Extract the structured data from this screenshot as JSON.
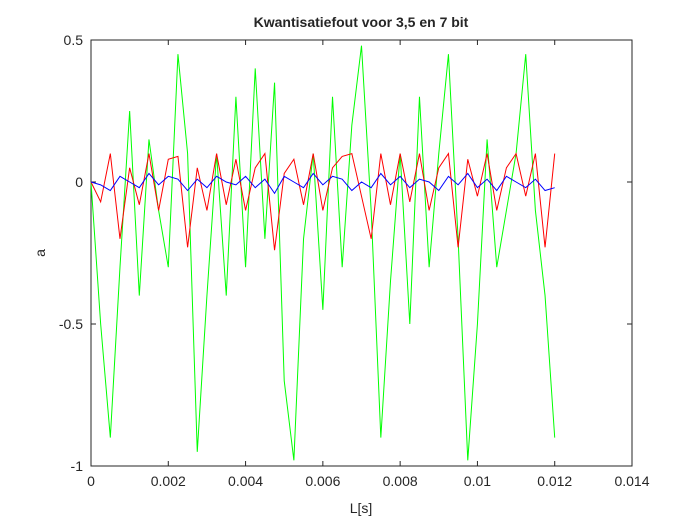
{
  "chart_data": {
    "type": "line",
    "title": "Kwantisatiefout voor 3,5 en 7 bit",
    "x_label": "L[s]",
    "y_label": "a",
    "x": [
      0,
      0.00025,
      0.0005,
      0.00075,
      0.001,
      0.00125,
      0.0015,
      0.00175,
      0.002,
      0.00225,
      0.0025,
      0.00275,
      0.003,
      0.00325,
      0.0035,
      0.00375,
      0.004,
      0.00425,
      0.0045,
      0.00475,
      0.005,
      0.00525,
      0.0055,
      0.00575,
      0.006,
      0.00625,
      0.0065,
      0.00675,
      0.007,
      0.00725,
      0.0075,
      0.00775,
      0.008,
      0.00825,
      0.0085,
      0.00875,
      0.009,
      0.00925,
      0.0095,
      0.00975,
      0.01,
      0.01025,
      0.0105,
      0.01075,
      0.011,
      0.01125,
      0.0115,
      0.01175,
      0.012
    ],
    "series": [
      {
        "color": "#00ff00",
        "values": [
          0,
          -0.5,
          -0.9,
          -0.3,
          0.25,
          -0.4,
          0.15,
          -0.1,
          -0.3,
          0.45,
          0.1,
          -0.95,
          -0.4,
          0.1,
          -0.4,
          0.3,
          -0.3,
          0.4,
          -0.2,
          0.35,
          -0.7,
          -0.98,
          -0.2,
          0.1,
          -0.45,
          0.3,
          -0.3,
          0.2,
          0.48,
          -0.1,
          -0.9,
          -0.35,
          0.1,
          -0.5,
          0.3,
          -0.3,
          0.1,
          0.45,
          -0.2,
          -0.98,
          -0.5,
          0.15,
          -0.3,
          -0.1,
          0.1,
          0.45,
          -0.1,
          -0.4,
          -0.9
        ]
      },
      {
        "color": "#ff0000",
        "values": [
          0,
          -0.07,
          0.1,
          -0.2,
          0.05,
          -0.08,
          0.1,
          -0.1,
          0.08,
          0.09,
          -0.23,
          0.05,
          -0.1,
          0.1,
          -0.08,
          0.08,
          -0.1,
          0.05,
          0.1,
          -0.24,
          0.03,
          0.08,
          -0.08,
          0.1,
          -0.1,
          0.05,
          0.09,
          0.1,
          -0.05,
          -0.2,
          0.1,
          -0.08,
          0.1,
          -0.07,
          0.1,
          -0.1,
          0.05,
          0.1,
          -0.23,
          0.08,
          -0.05,
          0.1,
          -0.1,
          0.05,
          0.1,
          -0.05,
          0.1,
          -0.23,
          0.1
        ]
      },
      {
        "color": "#0000ff",
        "values": [
          0,
          -0.01,
          -0.03,
          0.02,
          0,
          -0.02,
          0.03,
          -0.01,
          0.02,
          0.01,
          -0.03,
          0.01,
          -0.02,
          0.02,
          0,
          -0.01,
          0.02,
          -0.02,
          0.01,
          -0.04,
          0.02,
          0,
          -0.02,
          0.03,
          -0.01,
          0.02,
          0.01,
          -0.03,
          0,
          -0.02,
          0.03,
          -0.01,
          0.02,
          -0.02,
          0.01,
          0,
          -0.03,
          0.02,
          -0.01,
          0.03,
          -0.02,
          0.01,
          -0.03,
          0.02,
          0,
          -0.02,
          0.01,
          -0.03,
          -0.02
        ]
      }
    ],
    "xlim": [
      0,
      0.014
    ],
    "xticks": [
      0,
      0.002,
      0.004,
      0.006,
      0.008,
      0.01,
      0.012,
      0.014
    ],
    "ylim": [
      -1,
      0.5
    ],
    "yticks": [
      -1,
      -0.5,
      0,
      0.5
    ]
  }
}
